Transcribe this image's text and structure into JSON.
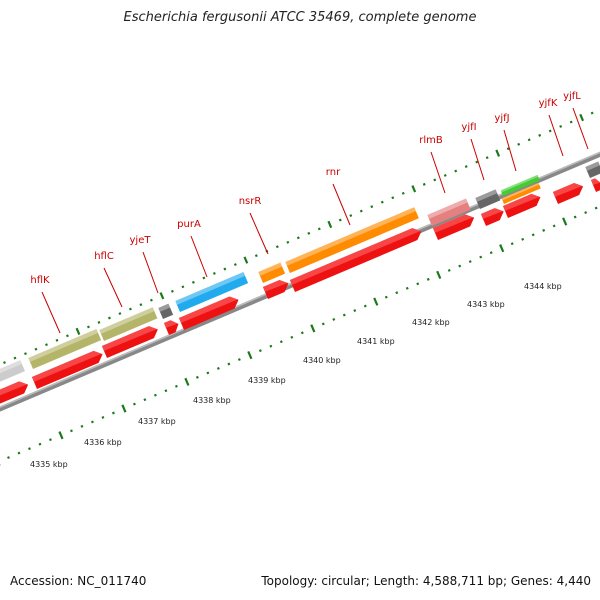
{
  "title": "Escherichia fergusonii ATCC 35469, complete genome",
  "footer": {
    "accession": "Accession: NC_011740",
    "topology": "Topology: circular; Length: 4,588,711 bp; Genes: 4,440"
  },
  "genes": [
    {
      "name": "hflK",
      "color": "#b5b56a"
    },
    {
      "name": "hflC",
      "color": "#b5b56a"
    },
    {
      "name": "yjeT",
      "color": "#666666"
    },
    {
      "name": "purA",
      "color": "#22aaee"
    },
    {
      "name": "nsrR",
      "color": "#ff8c00"
    },
    {
      "name": "rnr",
      "color": "#ff8c00"
    },
    {
      "name": "rlmB",
      "color": "#e58080"
    },
    {
      "name": "yjfI",
      "color": "#666666"
    },
    {
      "name": "yjfJ",
      "color": "#ff8c00"
    },
    {
      "name": "yjfK",
      "color": "#666666"
    },
    {
      "name": "yjfL",
      "color": "#666666"
    }
  ],
  "scale_labels": [
    "4335 kbp",
    "4336 kbp",
    "4337 kbp",
    "4338 kbp",
    "4339 kbp",
    "4340 kbp",
    "4341 kbp",
    "4342 kbp",
    "4343 kbp",
    "4344 kbp"
  ],
  "colors": {
    "cds": "#ee1111",
    "backbone": "#888888",
    "tick": "#1a7a1a",
    "label": "#cc0000",
    "extra_green": "#44cc33"
  }
}
